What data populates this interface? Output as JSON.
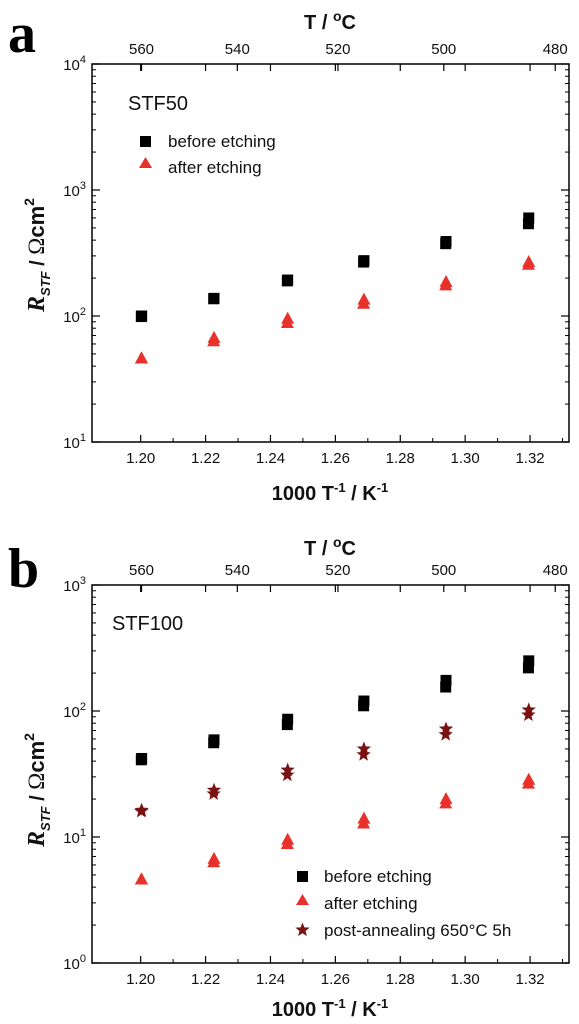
{
  "chart_data": [
    {
      "type": "scatter",
      "panel_label": "a",
      "sample_label": "STF50",
      "xlabel_bottom": {
        "main": "1000 T",
        "sup1": "-1",
        "mid": " / K",
        "sup2": "-1"
      },
      "xlabel_top": {
        "main": "T / ",
        "sup": "o",
        "end": "C"
      },
      "ylabel": {
        "r": "R",
        "sub": "STF",
        "slash": "  /  ",
        "omega": "Ω",
        "unit": "cm",
        "sup": "2"
      },
      "xlim": [
        1.185,
        1.332
      ],
      "ylim": [
        10,
        10000
      ],
      "yscale": "log",
      "xticks": [
        "1.20",
        "1.22",
        "1.24",
        "1.26",
        "1.28",
        "1.30",
        "1.32"
      ],
      "xtick_values": [
        1.2,
        1.22,
        1.24,
        1.26,
        1.28,
        1.3,
        1.32
      ],
      "top_ticks": [
        "560",
        "540",
        "520",
        "500",
        "480"
      ],
      "top_tick_celsius": [
        560,
        540,
        520,
        500,
        480
      ],
      "yticks": [
        {
          "base": "10",
          "exp": "1",
          "value": 10
        },
        {
          "base": "10",
          "exp": "2",
          "value": 100
        },
        {
          "base": "10",
          "exp": "3",
          "value": 1000
        },
        {
          "base": "10",
          "exp": "4",
          "value": 10000
        }
      ],
      "legend_position": "top-left",
      "series": [
        {
          "name": "before etching",
          "marker": "square",
          "color": "#000000",
          "points": [
            [
              1.2002,
              99
            ],
            [
              1.2003,
              100
            ],
            [
              1.2225,
              137
            ],
            [
              1.2226,
              138
            ],
            [
              1.2452,
              190
            ],
            [
              1.2453,
              193
            ],
            [
              1.2687,
              268
            ],
            [
              1.2688,
              275
            ],
            [
              1.294,
              375
            ],
            [
              1.2941,
              390
            ],
            [
              1.3195,
              540
            ],
            [
              1.3196,
              600
            ]
          ]
        },
        {
          "name": "after etching",
          "marker": "triangle",
          "color": "#e8312a",
          "points": [
            [
              1.2002,
              46
            ],
            [
              1.2003,
              46
            ],
            [
              1.2225,
              63
            ],
            [
              1.2226,
              67
            ],
            [
              1.2452,
              88
            ],
            [
              1.2453,
              95
            ],
            [
              1.2687,
              125
            ],
            [
              1.2688,
              135
            ],
            [
              1.294,
              175
            ],
            [
              1.2941,
              186
            ],
            [
              1.3195,
              255
            ],
            [
              1.3196,
              268
            ]
          ]
        }
      ]
    },
    {
      "type": "scatter",
      "panel_label": "b",
      "sample_label": "STF100",
      "xlabel_bottom": {
        "main": "1000 T",
        "sup1": "-1",
        "mid": " / K",
        "sup2": "-1"
      },
      "xlabel_top": {
        "main": "T / ",
        "sup": "o",
        "end": "C"
      },
      "ylabel": {
        "r": "R",
        "sub": "STF",
        "slash": "  /  ",
        "omega": "Ω",
        "unit": "cm",
        "sup": "2"
      },
      "xlim": [
        1.185,
        1.332
      ],
      "ylim": [
        1,
        1000
      ],
      "yscale": "log",
      "xticks": [
        "1.20",
        "1.22",
        "1.24",
        "1.26",
        "1.28",
        "1.30",
        "1.32"
      ],
      "xtick_values": [
        1.2,
        1.22,
        1.24,
        1.26,
        1.28,
        1.3,
        1.32
      ],
      "top_ticks": [
        "560",
        "540",
        "520",
        "500",
        "480"
      ],
      "top_tick_celsius": [
        560,
        540,
        520,
        500,
        480
      ],
      "yticks": [
        {
          "base": "10",
          "exp": "0",
          "value": 1
        },
        {
          "base": "10",
          "exp": "1",
          "value": 10
        },
        {
          "base": "10",
          "exp": "2",
          "value": 100
        },
        {
          "base": "10",
          "exp": "3",
          "value": 1000
        }
      ],
      "legend_position": "bottom-right",
      "series": [
        {
          "name": "before etching",
          "marker": "square",
          "color": "#000000",
          "points": [
            [
              1.2002,
              41
            ],
            [
              1.2003,
              42
            ],
            [
              1.2225,
              56
            ],
            [
              1.2226,
              59
            ],
            [
              1.2452,
              78
            ],
            [
              1.2453,
              86
            ],
            [
              1.2687,
              110
            ],
            [
              1.2688,
              120
            ],
            [
              1.294,
              155
            ],
            [
              1.2941,
              175
            ],
            [
              1.3195,
              220
            ],
            [
              1.3196,
              250
            ]
          ]
        },
        {
          "name": "after etching",
          "marker": "triangle",
          "color": "#e8312a",
          "points": [
            [
              1.2002,
              4.6
            ],
            [
              1.2003,
              4.6
            ],
            [
              1.2225,
              6.3
            ],
            [
              1.2226,
              6.7
            ],
            [
              1.2452,
              8.8
            ],
            [
              1.2453,
              9.5
            ],
            [
              1.2687,
              12.8
            ],
            [
              1.2688,
              14
            ],
            [
              1.294,
              18.5
            ],
            [
              1.2941,
              20
            ],
            [
              1.3195,
              26.5
            ],
            [
              1.3196,
              28.5
            ]
          ]
        },
        {
          "name": "post-annealing 650°C 5h",
          "marker": "star",
          "color": "#7a1212",
          "points": [
            [
              1.2002,
              16
            ],
            [
              1.2003,
              16.3
            ],
            [
              1.2225,
              22
            ],
            [
              1.2226,
              23.5
            ],
            [
              1.2452,
              31
            ],
            [
              1.2453,
              34
            ],
            [
              1.2687,
              45
            ],
            [
              1.2688,
              50
            ],
            [
              1.294,
              65
            ],
            [
              1.2941,
              72
            ],
            [
              1.3195,
              93
            ],
            [
              1.3196,
              102
            ]
          ]
        }
      ]
    }
  ]
}
